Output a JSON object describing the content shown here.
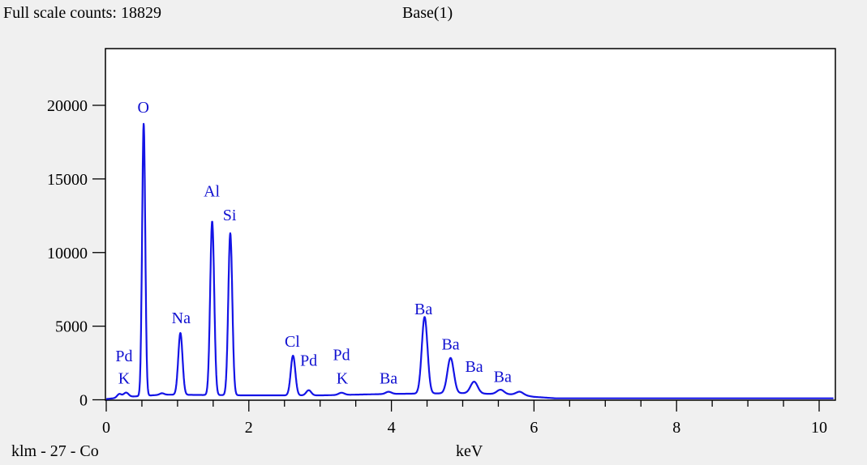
{
  "header": {
    "full_scale_label": "Full scale counts: 18829",
    "title": "Base(1)"
  },
  "footer": {
    "sample_label": "klm - 27 - Co",
    "xlabel": "keV"
  },
  "colors": {
    "background": "#f0f0f0",
    "plot_background": "#ffffff",
    "spectrum": "#1414e6",
    "peak_labels": "#1010d0"
  },
  "chart_data": {
    "type": "line",
    "title": "Base(1)",
    "xlabel": "keV",
    "ylabel": "",
    "xlim": [
      0,
      10.2
    ],
    "ylim": [
      0,
      23000
    ],
    "x_ticks": [
      0,
      2,
      4,
      6,
      8,
      10
    ],
    "y_ticks": [
      0,
      5000,
      10000,
      15000,
      20000
    ],
    "grid": false,
    "series": [
      {
        "baseline": [
          [
            0,
            50
          ],
          [
            0.3,
            200
          ],
          [
            0.8,
            350
          ],
          [
            2.0,
            300
          ],
          [
            3.0,
            300
          ],
          [
            4.0,
            400
          ],
          [
            5.0,
            450
          ],
          [
            5.8,
            350
          ],
          [
            6.0,
            200
          ],
          [
            6.3,
            100
          ],
          [
            10.2,
            100
          ]
        ],
        "peaks": [
          {
            "center": 0.183,
            "height": 250,
            "width": 0.03
          },
          {
            "center": 0.277,
            "height": 300,
            "width": 0.035
          },
          {
            "center": 0.525,
            "height": 18500,
            "width": 0.022
          },
          {
            "center": 0.78,
            "height": 100,
            "width": 0.03
          },
          {
            "center": 1.04,
            "height": 4200,
            "width": 0.03
          },
          {
            "center": 1.486,
            "height": 11800,
            "width": 0.028
          },
          {
            "center": 1.74,
            "height": 11000,
            "width": 0.028
          },
          {
            "center": 2.62,
            "height": 2700,
            "width": 0.032
          },
          {
            "center": 2.84,
            "height": 350,
            "width": 0.035
          },
          {
            "center": 3.3,
            "height": 150,
            "width": 0.04
          },
          {
            "center": 3.96,
            "height": 150,
            "width": 0.04
          },
          {
            "center": 4.466,
            "height": 5200,
            "width": 0.04
          },
          {
            "center": 4.83,
            "height": 2400,
            "width": 0.045
          },
          {
            "center": 5.16,
            "height": 800,
            "width": 0.05
          },
          {
            "center": 5.53,
            "height": 300,
            "width": 0.05
          },
          {
            "center": 5.8,
            "height": 200,
            "width": 0.05
          }
        ]
      }
    ],
    "peak_labels": [
      {
        "text": "O",
        "x": 0.52,
        "y": 19500
      },
      {
        "text": "Al",
        "x": 1.48,
        "y": 13800
      },
      {
        "text": "Si",
        "x": 1.73,
        "y": 12200
      },
      {
        "text": "Na",
        "x": 1.05,
        "y": 5200
      },
      {
        "text": "Pd",
        "x": 0.25,
        "y": 2600
      },
      {
        "text": "K",
        "x": 0.25,
        "y": 1100
      },
      {
        "text": "Cl",
        "x": 2.61,
        "y": 3600
      },
      {
        "text": "Pd",
        "x": 2.84,
        "y": 2300
      },
      {
        "text": "Pd",
        "x": 3.3,
        "y": 2700
      },
      {
        "text": "K",
        "x": 3.31,
        "y": 1100
      },
      {
        "text": "Ba",
        "x": 3.96,
        "y": 1100
      },
      {
        "text": "Ba",
        "x": 4.45,
        "y": 5800
      },
      {
        "text": "Ba",
        "x": 4.83,
        "y": 3400
      },
      {
        "text": "Ba",
        "x": 5.16,
        "y": 1900
      },
      {
        "text": "Ba",
        "x": 5.56,
        "y": 1200
      }
    ]
  }
}
